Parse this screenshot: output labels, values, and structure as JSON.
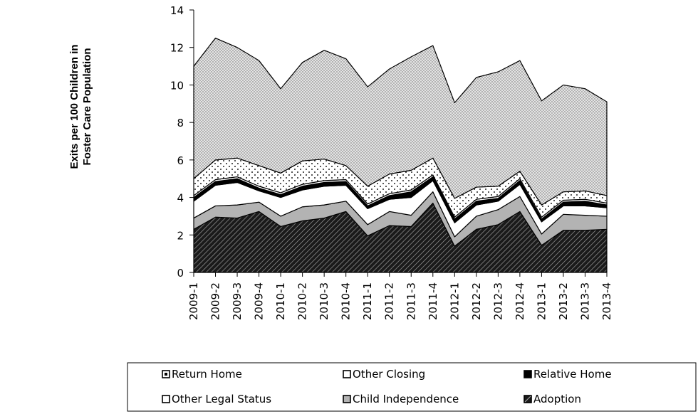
{
  "chart_data": {
    "type": "area",
    "stacked": true,
    "ylabel": [
      "Exits per 100 Children in",
      "Foster Care Population"
    ],
    "xlabel": "",
    "ylim": [
      0,
      14
    ],
    "yticks": [
      0,
      2,
      4,
      6,
      8,
      10,
      12,
      14
    ],
    "categories": [
      "2009-1",
      "2009-2",
      "2009-3",
      "2009-4",
      "2010-1",
      "2010-2",
      "2010-3",
      "2010-4",
      "2011-1",
      "2011-2",
      "2011-3",
      "2011-4",
      "2012-1",
      "2012-2",
      "2012-3",
      "2012-4",
      "2013-1",
      "2013-2",
      "2013-3",
      "2013-4"
    ],
    "series": [
      {
        "name": "Adoption",
        "pattern": "hatch-dark",
        "values": [
          2.3,
          2.95,
          2.9,
          3.25,
          2.45,
          2.75,
          2.9,
          3.25,
          1.95,
          2.5,
          2.45,
          3.7,
          1.4,
          2.3,
          2.55,
          3.25,
          1.45,
          2.25,
          2.25,
          2.3
        ]
      },
      {
        "name": "Child Independence",
        "pattern": "gray",
        "values": [
          0.6,
          0.6,
          0.7,
          0.5,
          0.55,
          0.75,
          0.7,
          0.55,
          0.6,
          0.75,
          0.6,
          0.6,
          0.5,
          0.7,
          0.8,
          0.8,
          0.6,
          0.85,
          0.8,
          0.7
        ]
      },
      {
        "name": "Other Legal Status",
        "pattern": "white",
        "values": [
          0.9,
          1.1,
          1.2,
          0.6,
          1.0,
          0.9,
          1.0,
          0.85,
          0.85,
          0.65,
          0.95,
          0.6,
          0.75,
          0.6,
          0.45,
          0.65,
          0.65,
          0.45,
          0.5,
          0.45
        ]
      },
      {
        "name": "Relative Home",
        "pattern": "black",
        "values": [
          0.2,
          0.2,
          0.2,
          0.15,
          0.15,
          0.2,
          0.2,
          0.2,
          0.15,
          0.2,
          0.3,
          0.2,
          0.2,
          0.2,
          0.15,
          0.2,
          0.15,
          0.2,
          0.25,
          0.15
        ]
      },
      {
        "name": "Other Closing",
        "pattern": "white",
        "values": [
          0.1,
          0.1,
          0.1,
          0.1,
          0.1,
          0.1,
          0.1,
          0.1,
          0.1,
          0.1,
          0.1,
          0.1,
          0.1,
          0.1,
          0.1,
          0.1,
          0.1,
          0.1,
          0.1,
          0.1
        ]
      },
      {
        "name": "Return Home",
        "pattern": "dots-sparse",
        "values": [
          0.9,
          1.05,
          1.0,
          1.1,
          1.05,
          1.25,
          1.15,
          0.75,
          0.95,
          1.05,
          1.05,
          0.9,
          1.0,
          0.65,
          0.55,
          0.4,
          0.65,
          0.45,
          0.45,
          0.4
        ]
      },
      {
        "name": "",
        "pattern": "dots-dense",
        "values": [
          6.0,
          6.5,
          5.9,
          5.6,
          4.5,
          5.25,
          5.8,
          5.7,
          5.3,
          5.6,
          6.05,
          6.0,
          5.1,
          5.85,
          6.1,
          5.9,
          5.55,
          5.7,
          5.45,
          5.0
        ]
      }
    ],
    "legend": {
      "placement": "bottom",
      "rows": [
        [
          {
            "label": "Return Home",
            "pattern": "dots-sparse"
          },
          {
            "label": "Other Closing",
            "pattern": "white"
          },
          {
            "label": "Relative Home",
            "pattern": "black"
          }
        ],
        [
          {
            "label": "Other Legal Status",
            "pattern": "white"
          },
          {
            "label": "Child Independence",
            "pattern": "gray"
          },
          {
            "label": "Adoption",
            "pattern": "hatch-dark"
          }
        ]
      ]
    },
    "grid": false
  }
}
